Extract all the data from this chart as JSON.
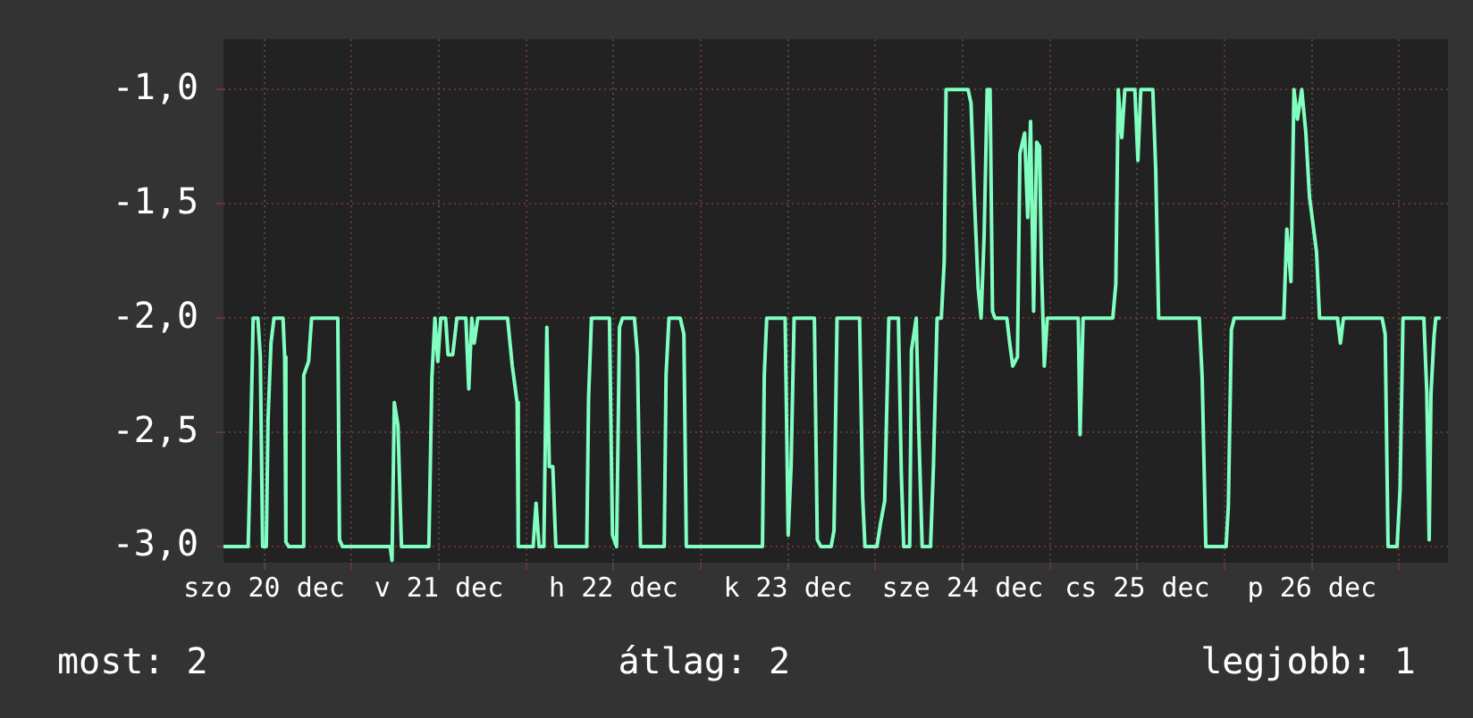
{
  "chart_data": {
    "type": "line",
    "x": [
      "--12-20T06:24",
      "--12-20T09:48",
      "--12-20T10:04",
      "--12-20T10:29",
      "--12-20T11:08",
      "--12-20T11:28",
      "--12-20T11:47",
      "--12-20T12:17",
      "--12-20T12:32",
      "--12-20T12:56",
      "--12-20T13:21",
      "--12-20T14:35",
      "--12-20T14:49",
      "--12-20T14:59",
      "--12-20T15:23",
      "--12-20T17:17",
      "--12-20T17:26",
      "--12-20T18:06",
      "--12-20T18:31",
      "--12-20T22:07",
      "--12-20T22:21",
      "--12-20T22:46",
      "--12-21T05:19",
      "--12-21T05:34",
      "--12-21T05:53",
      "--12-21T06:23",
      "--12-21T06:52",
      "--12-21T10:38",
      "--12-21T11:03",
      "--12-21T11:28",
      "--12-21T11:52",
      "--12-21T12:16",
      "--12-21T12:56",
      "--12-21T13:16",
      "--12-21T13:55",
      "--12-21T14:29",
      "--12-21T15:43",
      "--12-21T16:07",
      "--12-21T16:32",
      "--12-21T16:52",
      "--12-21T17:21",
      "--12-21T21:27",
      "--12-21T22:06",
      "--12-21T22:46",
      "--12-21T22:55",
      "--12-22T00:58",
      "--12-22T01:22",
      "--12-22T01:47",
      "--12-22T02:26",
      "--12-22T02:51",
      "--12-22T03:11",
      "--12-22T03:40",
      "--12-22T04:05",
      "--12-22T08:20",
      "--12-22T08:35",
      "--12-22T08:59",
      "--12-22T11:27",
      "--12-22T11:52",
      "--12-22T12:26",
      "--12-22T12:50",
      "--12-22T13:15",
      "--12-22T14:53",
      "--12-22T15:18",
      "--12-22T15:43",
      "--12-22T18:59",
      "--12-22T19:14",
      "--12-22T19:38",
      "--12-22T21:11",
      "--12-22T21:41",
      "--12-22T22:01",
      "--12-23T08:29",
      "--12-23T08:44",
      "--12-23T09:04",
      "--12-23T11:36",
      "--12-23T12:01",
      "--12-23T12:25",
      "--12-23T12:50",
      "--12-23T15:37",
      "--12-23T16:01",
      "--12-23T16:31",
      "--12-23T17:55",
      "--12-23T18:19",
      "--12-23T18:44",
      "--12-23T21:50",
      "--12-23T22:15",
      "--12-23T22:34",
      "--12-24T00:13",
      "--12-24T00:42",
      "--12-24T01:17",
      "--12-24T01:51",
      "--12-24T03:10",
      "--12-24T03:34",
      "--12-24T03:54",
      "--12-24T04:43",
      "--12-24T04:58",
      "--12-24T05:37",
      "--12-24T05:57",
      "--12-24T06:26",
      "--12-24T07:35",
      "--12-24T07:59",
      "--12-24T08:29",
      "--12-24T09:04",
      "--12-24T09:28",
      "--12-24T09:43",
      "--12-24T12:44",
      "--12-24T13:09",
      "--12-24T13:34",
      "--12-24T14:08",
      "--12-24T14:32",
      "--12-24T14:57",
      "--12-24T15:22",
      "--12-24T15:46",
      "--12-24T16:06",
      "--12-24T16:26",
      "--12-24T18:04",
      "--12-24T18:28",
      "--12-24T18:53",
      "--12-24T19:32",
      "--12-24T19:52",
      "--12-24T20:31",
      "--12-24T20:56",
      "--12-24T21:20",
      "--12-24T21:45",
      "--12-24T22:10",
      "--12-24T22:34",
      "--12-24T22:49",
      "--12-24T23:13",
      "--12-24T23:38",
      "--12-25T03:53",
      "--12-25T04:08",
      "--12-25T04:33",
      "--12-25T08:38",
      "--12-25T09:03",
      "--12-25T09:23",
      "--12-25T09:52",
      "--12-25T10:17",
      "--12-25T11:40",
      "--12-25T12:05",
      "--12-25T12:29",
      "--12-25T14:08",
      "--12-25T14:32",
      "--12-25T14:56",
      "--12-25T20:31",
      "--12-25T20:55",
      "--12-25T21:25",
      "--12-26T00:12",
      "--12-26T00:31",
      "--12-26T00:56",
      "--12-26T01:20",
      "--12-26T08:08",
      "--12-26T08:33",
      "--12-26T09:07",
      "--12-26T09:32",
      "--12-26T10:01",
      "--12-26T10:36",
      "--12-26T11:10",
      "--12-26T11:40",
      "--12-26T12:14",
      "--12-26T12:38",
      "--12-26T13:03",
      "--12-26T15:31",
      "--12-26T15:55",
      "--12-26T16:20",
      "--12-26T21:39",
      "--12-26T22:04",
      "--12-26T22:28",
      "--12-26T23:42",
      "--12-27T00:07",
      "--12-27T00:31",
      "--12-27T03:23",
      "--12-27T03:47",
      "--12-27T04:07",
      "--12-27T04:22",
      "--12-27T04:47",
      "--12-27T05:01",
      "--12-27T05:41"
    ],
    "series": [
      {
        "color": "#80ffc0",
        "values": [
          -3,
          -3,
          -2.65,
          -2,
          -2,
          -2.17,
          -3,
          -3,
          -2.44,
          -2.11,
          -2,
          -2,
          -2.17,
          -2.98,
          -3,
          -3,
          -2.25,
          -2.19,
          -2,
          -2,
          -2.97,
          -3,
          -3,
          -3.06,
          -2.37,
          -2.47,
          -3,
          -3,
          -2.26,
          -2,
          -2.19,
          -2,
          -2,
          -2.16,
          -2.16,
          -2,
          -2,
          -2.31,
          -2,
          -2.11,
          -2,
          -2,
          -2.21,
          -2.37,
          -3,
          -3,
          -2.81,
          -3,
          -3,
          -2.04,
          -2.65,
          -2.65,
          -3,
          -3,
          -2.35,
          -2,
          -2,
          -2.95,
          -3,
          -2.04,
          -2,
          -2,
          -2.16,
          -3,
          -3,
          -2.25,
          -2,
          -2,
          -2.07,
          -3,
          -3,
          -2.25,
          -2,
          -2,
          -2.95,
          -2.65,
          -2,
          -2,
          -2.97,
          -3,
          -3,
          -2.93,
          -2,
          -2,
          -2.78,
          -3,
          -3,
          -2.9,
          -2.8,
          -2,
          -2,
          -2.68,
          -3,
          -3,
          -2.14,
          -2,
          -2.47,
          -3,
          -3,
          -2.65,
          -2,
          -2,
          -1.75,
          -1,
          -1,
          -1.06,
          -1.44,
          -1.87,
          -2,
          -1.64,
          -1,
          -1,
          -1.97,
          -2,
          -2,
          -2.11,
          -2.21,
          -2.17,
          -1.28,
          -1.19,
          -1.56,
          -1.14,
          -1.97,
          -1.23,
          -1.25,
          -1.76,
          -2.21,
          -2,
          -2,
          -2.51,
          -2,
          -2,
          -1.85,
          -1,
          -1.21,
          -1,
          -1,
          -1.31,
          -1,
          -1,
          -1.35,
          -2,
          -2,
          -2.26,
          -3,
          -3,
          -2.82,
          -2.05,
          -2,
          -2,
          -1.61,
          -1.84,
          -1,
          -1.13,
          -1,
          -1.19,
          -1.47,
          -1.61,
          -1.71,
          -2,
          -2,
          -2.11,
          -2,
          -2,
          -2.07,
          -3,
          -3,
          -2.75,
          -2,
          -2,
          -2.32,
          -2.97,
          -2.33,
          -2.08,
          -2,
          -2
        ]
      }
    ],
    "xlim": [
      "--12-20T06:24",
      "--12-27T06:42"
    ],
    "xticks": [
      {
        "value": "--12-20T12:00",
        "label": "szo 20 dec"
      },
      {
        "value": "--12-21T00:00",
        "label": null
      },
      {
        "value": "--12-21T12:00",
        "label": "v 21 dec"
      },
      {
        "value": "--12-22T00:00",
        "label": null
      },
      {
        "value": "--12-22T12:00",
        "label": "h 22 dec"
      },
      {
        "value": "--12-23T00:00",
        "label": null
      },
      {
        "value": "--12-23T12:00",
        "label": "k 23 dec"
      },
      {
        "value": "--12-24T00:00",
        "label": null
      },
      {
        "value": "--12-24T12:00",
        "label": "sze 24 dec"
      },
      {
        "value": "--12-25T00:00",
        "label": null
      },
      {
        "value": "--12-25T12:00",
        "label": "cs 25 dec"
      },
      {
        "value": "--12-26T00:00",
        "label": null
      },
      {
        "value": "--12-26T12:00",
        "label": "p 26 dec"
      },
      {
        "value": "--12-27T00:00",
        "label": null
      }
    ],
    "ylim": [
      -3.07,
      -0.78
    ],
    "yticks": [
      {
        "value": -3,
        "label": "-3,0"
      },
      {
        "value": -2.5,
        "label": "-2,5"
      },
      {
        "value": -2,
        "label": "-2,0"
      },
      {
        "value": -1.5,
        "label": "-1,5"
      },
      {
        "value": -1,
        "label": "-1,0"
      }
    ],
    "grid": true,
    "legend": false,
    "annotations": [
      "most: 2",
      "átlag: 2",
      "legjobb: 1"
    ]
  }
}
